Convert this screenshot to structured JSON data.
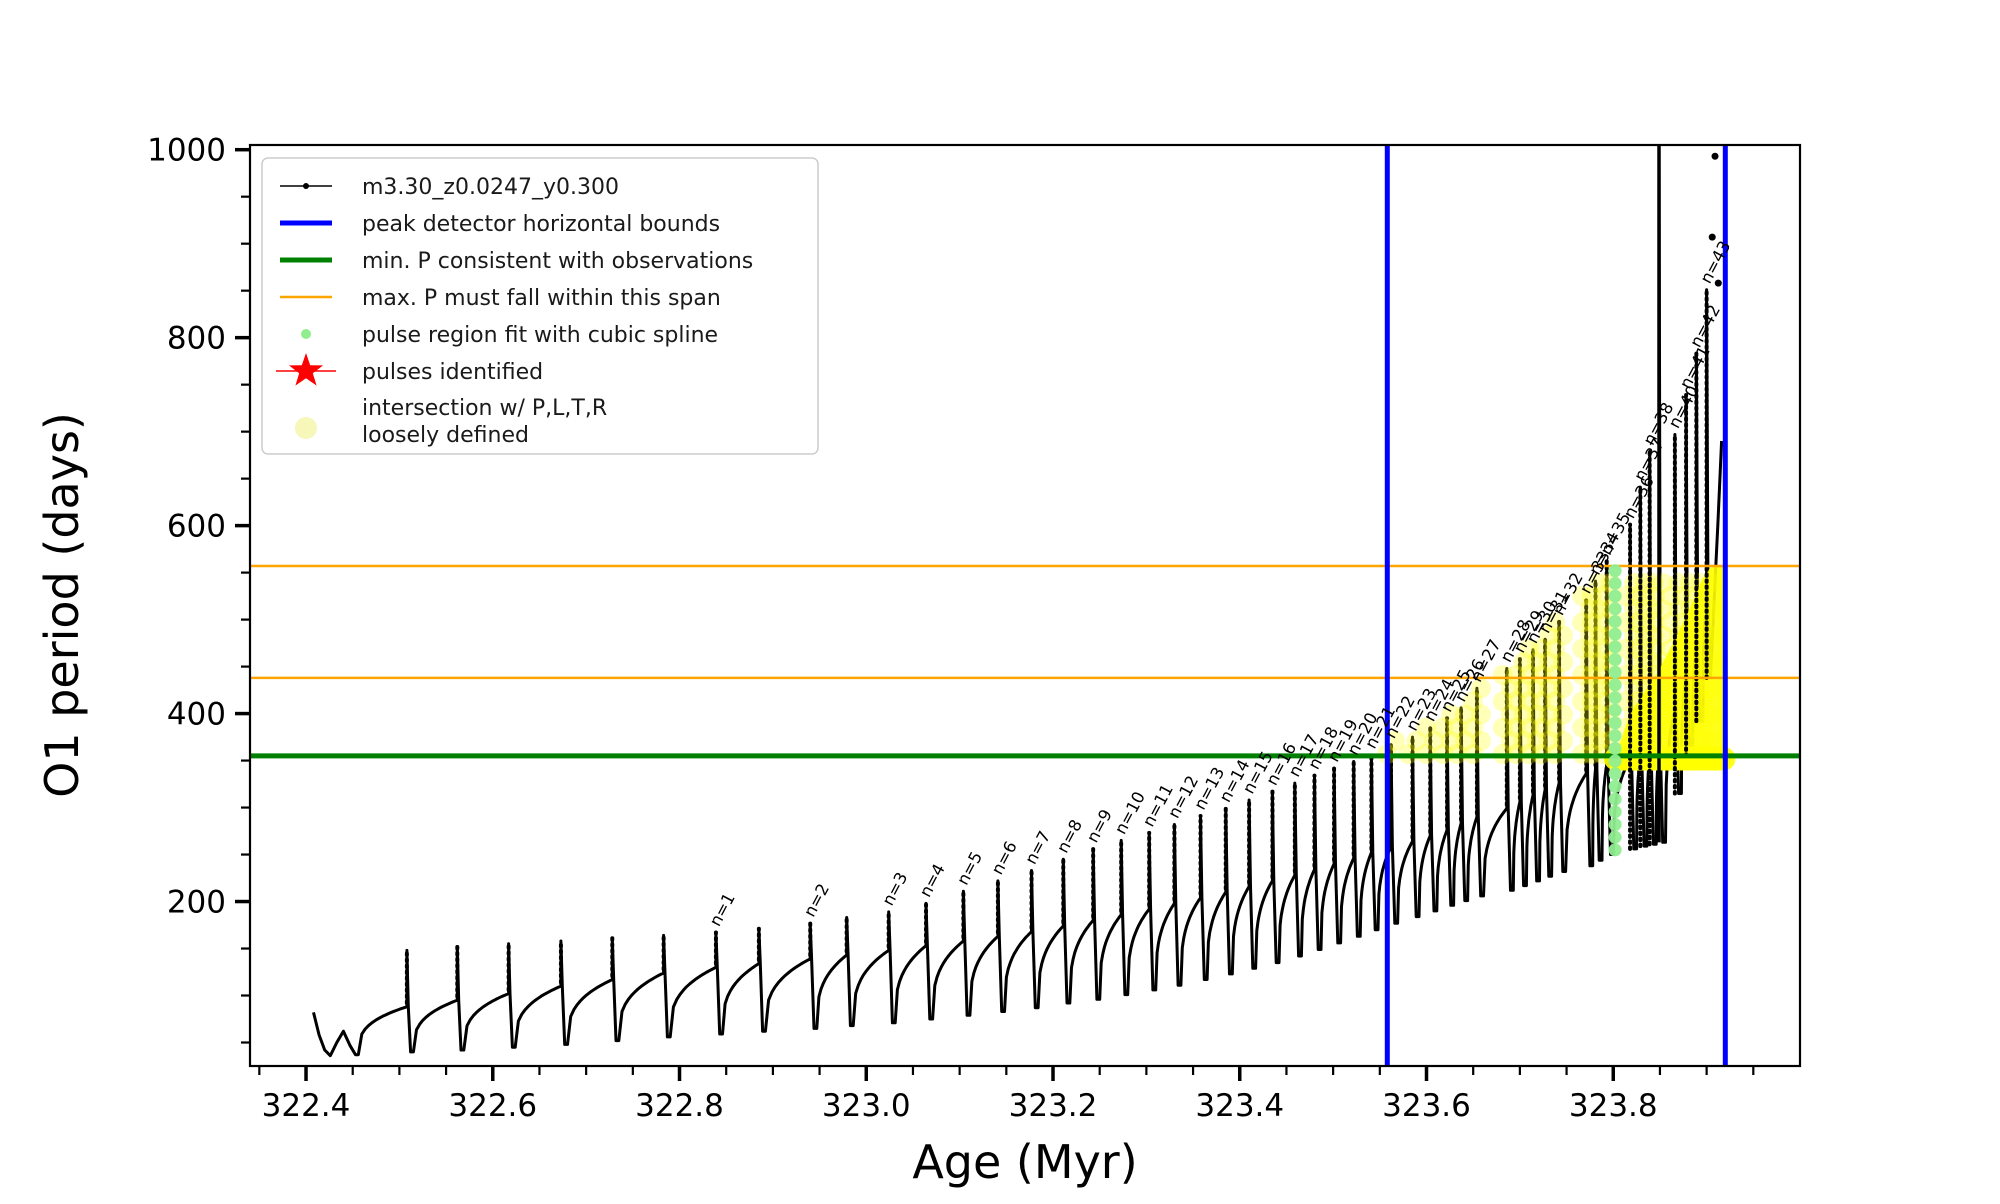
{
  "axes": {
    "xlabel": "Age (Myr)",
    "ylabel": "O1 period (days)",
    "xlim": [
      322.34,
      324.0
    ],
    "ylim": [
      25,
      1005
    ],
    "xticks": [
      322.4,
      322.6,
      322.8,
      323.0,
      323.2,
      323.4,
      323.6,
      323.8
    ],
    "yticks": [
      200,
      400,
      600,
      800,
      1000
    ],
    "xminor_step": 0.05,
    "yminor_step": 50,
    "grid": false
  },
  "legend": {
    "position": "upper-left",
    "items": [
      {
        "label": "m3.30_z0.0247_y0.300",
        "marker": "line-dot",
        "color": "#000000"
      },
      {
        "label": "peak detector horizontal bounds",
        "marker": "line",
        "color": "#0000ff",
        "lw": 5
      },
      {
        "label": "min. P consistent with observations",
        "marker": "line",
        "color": "#008000",
        "lw": 5
      },
      {
        "label": "max. P must fall within this span",
        "marker": "line",
        "color": "#ffa500",
        "lw": 2.5
      },
      {
        "label": "pulse region fit with cubic spline",
        "marker": "dot",
        "color": "#90ee90",
        "r": 5
      },
      {
        "label": "pulses identified",
        "marker": "star-line",
        "color": "#ff0000"
      },
      {
        "label": "intersection w/ P,L,T,R\nloosely defined",
        "marker": "dot",
        "color": "#f7f7b9",
        "r": 11
      }
    ]
  },
  "chart_data": {
    "type": "line",
    "title": "",
    "xlabel": "Age (Myr)",
    "ylabel": "O1 period (days)",
    "series_name": "m3.30_z0.0247_y0.300",
    "track_color": "#000000",
    "hlines": {
      "min_P_consistent": {
        "value": 355,
        "color": "#008000",
        "lw": 5
      },
      "max_P_span": {
        "values": [
          438,
          557
        ],
        "color": "#ffa500",
        "lw": 2.5
      }
    },
    "vlines": {
      "peak_detector_bounds": {
        "values": [
          323.558,
          323.92
        ],
        "color": "#0000ff",
        "lw": 5
      }
    },
    "intro_points": [
      [
        322.408,
        82
      ],
      [
        322.414,
        58
      ],
      [
        322.42,
        42
      ],
      [
        322.426,
        36
      ],
      [
        322.433,
        50
      ],
      [
        322.44,
        62
      ],
      [
        322.447,
        47
      ],
      [
        322.453,
        37
      ]
    ],
    "pulse_fields": "n=null means unlabeled pulse; age in Myr; base/tip/min_after in days",
    "pulses": [
      {
        "n": null,
        "age": 322.508,
        "base": 88,
        "tip": 148,
        "min_after": 40
      },
      {
        "n": null,
        "age": 322.562,
        "base": 95,
        "tip": 152,
        "min_after": 42
      },
      {
        "n": null,
        "age": 322.617,
        "base": 102,
        "tip": 155,
        "min_after": 45
      },
      {
        "n": null,
        "age": 322.673,
        "base": 110,
        "tip": 158,
        "min_after": 48
      },
      {
        "n": null,
        "age": 322.728,
        "base": 117,
        "tip": 161,
        "min_after": 52
      },
      {
        "n": null,
        "age": 322.783,
        "base": 124,
        "tip": 164,
        "min_after": 56
      },
      {
        "n": 1,
        "age": 322.839,
        "base": 130,
        "tip": 167,
        "min_after": 59
      },
      {
        "n": null,
        "age": 322.885,
        "base": 134,
        "tip": 171,
        "min_after": 62
      },
      {
        "n": 2,
        "age": 322.94,
        "base": 139,
        "tip": 177,
        "min_after": 65
      },
      {
        "n": null,
        "age": 322.979,
        "base": 143,
        "tip": 183,
        "min_after": 68
      },
      {
        "n": 3,
        "age": 323.024,
        "base": 148,
        "tip": 189,
        "min_after": 71
      },
      {
        "n": 4,
        "age": 323.064,
        "base": 153,
        "tip": 198,
        "min_after": 75
      },
      {
        "n": 5,
        "age": 323.104,
        "base": 158,
        "tip": 211,
        "min_after": 79
      },
      {
        "n": 6,
        "age": 323.141,
        "base": 163,
        "tip": 222,
        "min_after": 83
      },
      {
        "n": 7,
        "age": 323.177,
        "base": 168,
        "tip": 233,
        "min_after": 87
      },
      {
        "n": 8,
        "age": 323.211,
        "base": 174,
        "tip": 245,
        "min_after": 92
      },
      {
        "n": 9,
        "age": 323.243,
        "base": 180,
        "tip": 256,
        "min_after": 96
      },
      {
        "n": 10,
        "age": 323.273,
        "base": 186,
        "tip": 265,
        "min_after": 101
      },
      {
        "n": 11,
        "age": 323.303,
        "base": 192,
        "tip": 273,
        "min_after": 106
      },
      {
        "n": 12,
        "age": 323.33,
        "base": 198,
        "tip": 282,
        "min_after": 111
      },
      {
        "n": 13,
        "age": 323.358,
        "base": 204,
        "tip": 291,
        "min_after": 117
      },
      {
        "n": 14,
        "age": 323.385,
        "base": 210,
        "tip": 299,
        "min_after": 123
      },
      {
        "n": 15,
        "age": 323.41,
        "base": 216,
        "tip": 308,
        "min_after": 129
      },
      {
        "n": 16,
        "age": 323.435,
        "base": 222,
        "tip": 317,
        "min_after": 135
      },
      {
        "n": 17,
        "age": 323.459,
        "base": 228,
        "tip": 326,
        "min_after": 142
      },
      {
        "n": 18,
        "age": 323.48,
        "base": 234,
        "tip": 334,
        "min_after": 149
      },
      {
        "n": 19,
        "age": 323.501,
        "base": 240,
        "tip": 342,
        "min_after": 156
      },
      {
        "n": 20,
        "age": 323.522,
        "base": 246,
        "tip": 349,
        "min_after": 163
      },
      {
        "n": 21,
        "age": 323.541,
        "base": 252,
        "tip": 356,
        "min_after": 170
      },
      {
        "n": 22,
        "age": 323.562,
        "base": 258,
        "tip": 367,
        "min_after": 177
      },
      {
        "n": 23,
        "age": 323.585,
        "base": 264,
        "tip": 375,
        "min_after": 184
      },
      {
        "n": 24,
        "age": 323.604,
        "base": 270,
        "tip": 385,
        "min_after": 190
      },
      {
        "n": 25,
        "age": 323.622,
        "base": 276,
        "tip": 395,
        "min_after": 196
      },
      {
        "n": 26,
        "age": 323.637,
        "base": 283,
        "tip": 406,
        "min_after": 201
      },
      {
        "n": 27,
        "age": 323.654,
        "base": 290,
        "tip": 427,
        "min_after": 206
      },
      {
        "n": 28,
        "age": 323.686,
        "base": 299,
        "tip": 448,
        "min_after": 212
      },
      {
        "n": 29,
        "age": 323.7,
        "base": 306,
        "tip": 458,
        "min_after": 217
      },
      {
        "n": 30,
        "age": 323.714,
        "base": 313,
        "tip": 468,
        "min_after": 222
      },
      {
        "n": 31,
        "age": 323.727,
        "base": 319,
        "tip": 479,
        "min_after": 227
      },
      {
        "n": 32,
        "age": 323.742,
        "base": 326,
        "tip": 498,
        "min_after": 232
      },
      {
        "n": 33,
        "age": 323.771,
        "base": 336,
        "tip": 521,
        "min_after": 238
      },
      {
        "n": 34,
        "age": 323.781,
        "base": 341,
        "tip": 541,
        "min_after": 244
      },
      {
        "n": 35,
        "age": 323.793,
        "base": 346,
        "tip": 562,
        "min_after": 250
      },
      {
        "n": 36,
        "age": 323.818,
        "base": 352,
        "tip": 601,
        "min_after": 256
      },
      {
        "n": 37,
        "age": 323.829,
        "base": 355,
        "tip": 641,
        "min_after": 259
      },
      {
        "n": 38,
        "age": 323.839,
        "base": 357,
        "tip": 679,
        "min_after": 261
      },
      {
        "n": 39,
        "age": 323.849,
        "base": 360,
        "tip": 1005,
        "min_after": 263,
        "solid": true,
        "unlabeled": true
      },
      {
        "n": 40,
        "age": 323.866,
        "base": 405,
        "tip": 697,
        "min_after": 315
      },
      {
        "n": 41,
        "age": 323.878,
        "base": 445,
        "tip": 739,
        "min_after": 355
      },
      {
        "n": 42,
        "age": 323.889,
        "base": 480,
        "tip": 783,
        "min_after": 392
      },
      {
        "n": 43,
        "age": 323.9,
        "base": 523,
        "tip": 851,
        "min_after": 438
      }
    ],
    "end_rise_points": [
      [
        323.904,
        438
      ],
      [
        323.908,
        520
      ],
      [
        323.912,
        600
      ],
      [
        323.916,
        690
      ]
    ],
    "extra_dots": [
      [
        323.906,
        907
      ],
      [
        323.909,
        993
      ],
      [
        323.9125,
        858
      ]
    ],
    "spline_dots": {
      "age": 323.802,
      "from": 255,
      "to": 553,
      "step": 13.5,
      "radius": 6.5,
      "color": "#90ee90"
    },
    "yellow_intersection": {
      "color": "#ffff00",
      "stripe_start_age": 323.556,
      "stripe_base": 357,
      "stripe_cap": 552,
      "stripe_dot_radius": 10,
      "stripe_dot_step": 14,
      "stripe_opacity": 0.28,
      "blob_bottom": 350,
      "blob_top_anchors": [
        [
          323.803,
          357
        ],
        [
          323.818,
          400
        ],
        [
          323.835,
          425
        ],
        [
          323.85,
          448
        ],
        [
          323.865,
          477
        ],
        [
          323.88,
          508
        ],
        [
          323.895,
          542
        ],
        [
          323.905,
          557
        ],
        [
          323.918,
          557
        ]
      ]
    },
    "pulses_identified_stars": []
  }
}
